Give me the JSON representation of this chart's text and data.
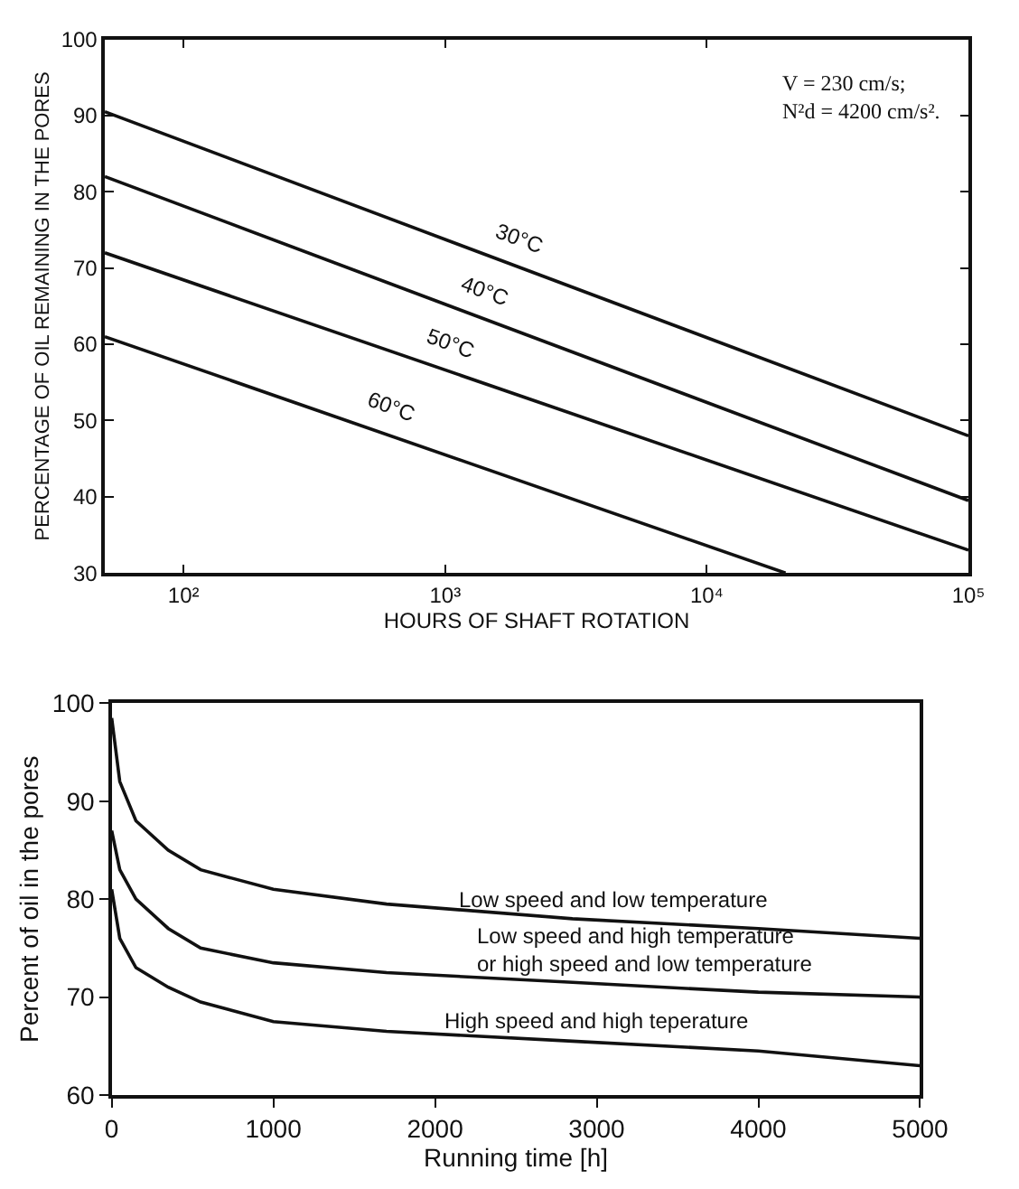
{
  "chart_data": [
    {
      "type": "line",
      "xlabel": "HOURS OF SHAFT ROTATION",
      "ylabel": "PERCENTAGE OF OIL REMAINING IN THE PORES",
      "log": "x",
      "xlim": [
        50,
        100000
      ],
      "xticks": [
        {
          "value": 100,
          "label": "10²"
        },
        {
          "value": 1000,
          "label": "10³"
        },
        {
          "value": 10000,
          "label": "10⁴"
        },
        {
          "value": 100000,
          "label": "10⁵"
        }
      ],
      "ylim": [
        30,
        100
      ],
      "yticks": [
        30,
        40,
        50,
        60,
        70,
        80,
        90,
        100
      ],
      "grid": false,
      "legend": false,
      "marker": "none",
      "line_style": "solid",
      "series": [
        {
          "name": "30°C",
          "color": "#111111",
          "x": [
            50,
            100000
          ],
          "values": [
            90.5,
            48
          ]
        },
        {
          "name": "40°C",
          "color": "#111111",
          "x": [
            50,
            100000
          ],
          "values": [
            82,
            39.5
          ]
        },
        {
          "name": "50°C",
          "color": "#111111",
          "x": [
            50,
            100000
          ],
          "values": [
            72,
            33
          ]
        },
        {
          "name": "60°C",
          "color": "#111111",
          "x": [
            50,
            20000
          ],
          "values": [
            61,
            30
          ]
        }
      ],
      "annotations": [
        "V = 230 cm/s;\nN²d = 4200 cm/s²."
      ]
    },
    {
      "type": "line",
      "xlabel": "Running time [h]",
      "ylabel": "Percent of oil in the pores",
      "xlim": [
        0,
        5000
      ],
      "xticks": [
        0,
        1000,
        2000,
        3000,
        4000,
        5000
      ],
      "ylim": [
        60,
        100
      ],
      "yticks": [
        60,
        70,
        80,
        90,
        100
      ],
      "grid": false,
      "legend": false,
      "marker": "none",
      "line_style": "solid",
      "x": [
        0,
        50,
        150,
        350,
        550,
        1000,
        1700,
        2850,
        4000,
        5000
      ],
      "series": [
        {
          "name": "Low speed and low temperature",
          "color": "#111111",
          "values": [
            98.5,
            92,
            88,
            85,
            83,
            81,
            79.5,
            78,
            77,
            76
          ]
        },
        {
          "name": "Low speed and high temperature\nor high speed and low temperature",
          "color": "#111111",
          "values": [
            87,
            83,
            80,
            77,
            75,
            73.5,
            72.5,
            71.5,
            70.5,
            70
          ]
        },
        {
          "name": "High speed and high teperature",
          "color": "#111111",
          "values": [
            81,
            76,
            73,
            71,
            69.5,
            67.5,
            66.5,
            65.5,
            64.5,
            63
          ]
        }
      ]
    }
  ]
}
